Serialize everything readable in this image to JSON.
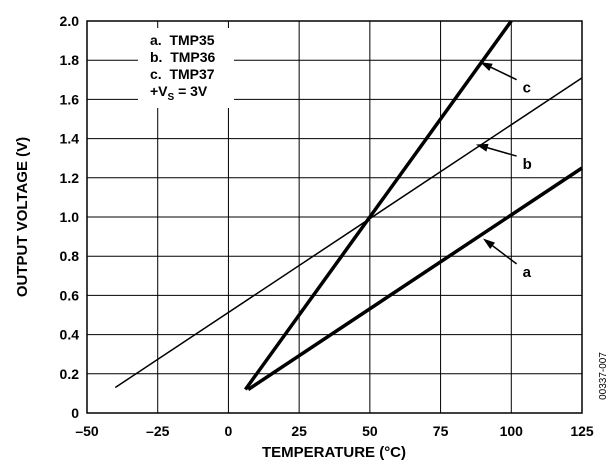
{
  "chart_data": {
    "type": "line",
    "xlabel": "TEMPERATURE (°C)",
    "ylabel": "OUTPUT VOLTAGE (V)",
    "xlim": [
      -50,
      125
    ],
    "ylim": [
      0,
      2.0
    ],
    "xticks": [
      -50,
      -25,
      0,
      25,
      50,
      75,
      100,
      125
    ],
    "xtick_labels": [
      "–50",
      "–25",
      "0",
      "25",
      "50",
      "75",
      "100",
      "125"
    ],
    "yticks": [
      0,
      0.2,
      0.4,
      0.6,
      0.8,
      1.0,
      1.2,
      1.4,
      1.6,
      1.8,
      2.0
    ],
    "ytick_labels": [
      "0",
      "0.2",
      "0.4",
      "0.6",
      "0.8",
      "1.0",
      "1.2",
      "1.4",
      "1.6",
      "1.8",
      "2.0"
    ],
    "grid": true,
    "legend": {
      "position": "top-left",
      "lines": [
        "a.  TMP35",
        "b.  TMP36",
        "c.  TMP37"
      ],
      "supply": {
        "prefix": "+V",
        "subscript": "S",
        "suffix": " = 3V"
      }
    },
    "series": [
      {
        "name": "a",
        "line_style": "bold",
        "x": [
          7,
          125
        ],
        "y": [
          0.12,
          1.25
        ]
      },
      {
        "name": "b",
        "line_style": "thin",
        "x": [
          -40,
          125
        ],
        "y": [
          0.13,
          1.71
        ]
      },
      {
        "name": "c",
        "line_style": "bold",
        "x": [
          6,
          100
        ],
        "y": [
          0.12,
          2.0
        ]
      }
    ],
    "callouts": [
      {
        "label": "a",
        "target": [
          90,
          0.89
        ],
        "text_at": [
          104,
          0.72
        ]
      },
      {
        "label": "b",
        "target": [
          87.5,
          1.37
        ],
        "text_at": [
          104,
          1.27
        ]
      },
      {
        "label": "c",
        "target": [
          89,
          1.79
        ],
        "text_at": [
          104,
          1.66
        ]
      }
    ],
    "figure_id": "00337-007"
  }
}
